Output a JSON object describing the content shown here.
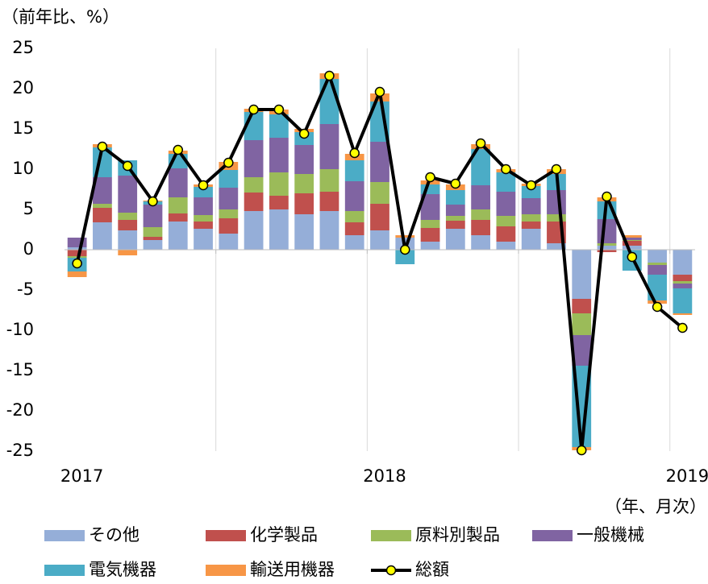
{
  "chart_data": {
    "type": "bar",
    "stacked": true,
    "y_label": "（前年比、%）",
    "x_label": "（年、月次）",
    "categories": [
      "2017",
      null,
      null,
      null,
      null,
      null,
      null,
      null,
      null,
      null,
      null,
      null,
      "2018",
      null,
      null,
      null,
      null,
      null,
      null,
      null,
      null,
      null,
      null,
      null,
      "2019"
    ],
    "ylim": [
      -25,
      25
    ],
    "yticks": [
      -25,
      -20,
      -15,
      -10,
      -5,
      0,
      5,
      10,
      15,
      20,
      25
    ],
    "grid": false,
    "series": [
      {
        "name": "その他",
        "color": "#95aed8",
        "values": [
          0.3,
          3.4,
          2.4,
          1.2,
          3.5,
          2.6,
          2.0,
          4.8,
          5.0,
          4.4,
          4.8,
          1.8,
          2.4,
          1.5,
          1.0,
          2.6,
          1.8,
          1.0,
          2.6,
          0.8,
          -6.1,
          0.5,
          0.5,
          -1.6,
          -3.1
        ]
      },
      {
        "name": "化学製品",
        "color": "#c0504d",
        "values": [
          -0.8,
          1.8,
          1.3,
          0.4,
          1.0,
          0.9,
          1.9,
          2.3,
          1.7,
          2.6,
          2.4,
          1.6,
          3.3,
          0,
          1.7,
          1.0,
          1.9,
          1.9,
          0.9,
          2.7,
          -1.8,
          -0.3,
          0.6,
          0,
          -0.8
        ]
      },
      {
        "name": "原料別製品",
        "color": "#9bbb59",
        "values": [
          -0.2,
          0.5,
          0.9,
          1.2,
          2.0,
          0.8,
          1.1,
          1.9,
          2.9,
          2.4,
          2.8,
          1.4,
          2.7,
          0,
          1.0,
          0.6,
          1.3,
          1.3,
          0.9,
          0.9,
          -2.7,
          0.3,
          0.1,
          -0.3,
          -0.3
        ]
      },
      {
        "name": "一般機械",
        "color": "#8064a2",
        "values": [
          1.2,
          3.3,
          4.6,
          2.8,
          3.6,
          2.2,
          2.7,
          4.6,
          4.3,
          3.6,
          5.6,
          3.7,
          5.0,
          0,
          3.2,
          1.4,
          3.0,
          3.0,
          2.0,
          3.0,
          -3.8,
          3.0,
          0.3,
          -1.2,
          -0.6
        ]
      },
      {
        "name": "電気機器",
        "color": "#4bacc6",
        "values": [
          -1.7,
          3.7,
          1.9,
          0.4,
          1.8,
          1.3,
          2.2,
          3.5,
          2.9,
          1.6,
          5.6,
          2.6,
          5.0,
          -1.8,
          1.2,
          1.8,
          4.5,
          2.4,
          1.5,
          2.0,
          -10.1,
          2.2,
          -2.6,
          -3.2,
          -3.1
        ]
      },
      {
        "name": "輸送用機器",
        "color": "#f79646",
        "values": [
          -0.7,
          0.4,
          -0.7,
          0.1,
          0.4,
          0.3,
          1.0,
          0.4,
          0.6,
          0.4,
          0.7,
          0.8,
          1.0,
          0.3,
          0.5,
          0.7,
          0.6,
          0.4,
          0.3,
          0.6,
          -0.4,
          0.5,
          0.3,
          -0.4,
          -0.2
        ]
      },
      {
        "name": "総額",
        "type": "line",
        "color": "#000000",
        "marker_color": "#ffff00",
        "values": [
          -1.7,
          12.8,
          10.4,
          6.0,
          12.4,
          8.0,
          10.8,
          17.4,
          17.4,
          14.4,
          21.6,
          12.0,
          19.6,
          0,
          9.0,
          8.2,
          13.2,
          10.0,
          8.0,
          10.0,
          -24.9,
          6.6,
          -0.9,
          -7.1,
          -9.7
        ]
      }
    ]
  }
}
